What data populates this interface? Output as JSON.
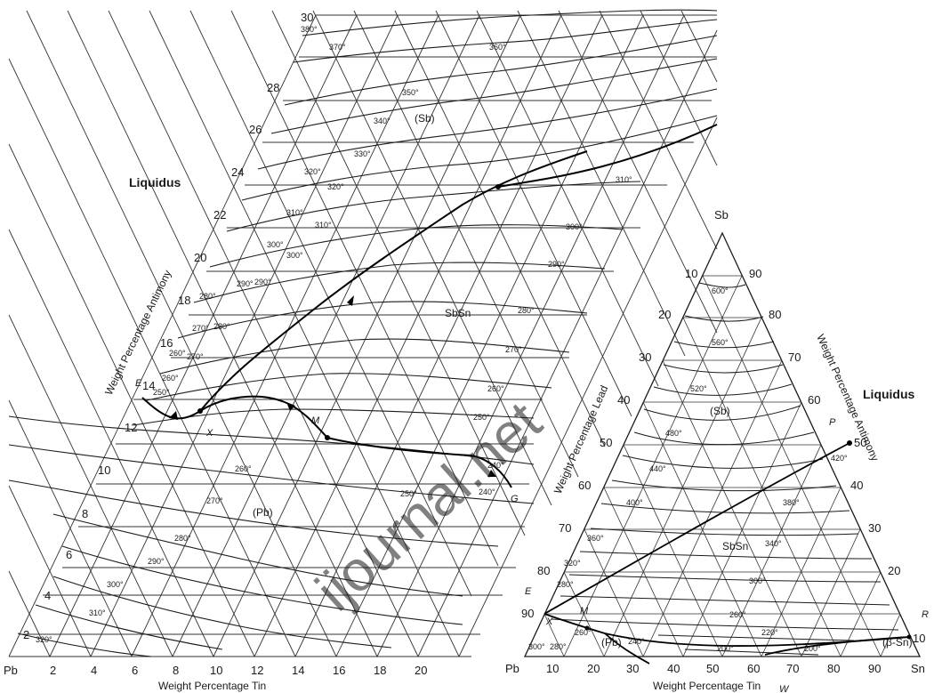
{
  "left_diagram": {
    "title": "Liquidus",
    "y_axis_label": "Weight Percentage Antimony",
    "x_axis_label": "Weight Percentage Tin",
    "corner_label": "Pb",
    "y_ticks": [
      "2",
      "4",
      "6",
      "8",
      "10",
      "12",
      "14",
      "16",
      "18",
      "20",
      "22",
      "24",
      "26",
      "28",
      "30"
    ],
    "x_ticks": [
      "2",
      "4",
      "6",
      "8",
      "10",
      "12",
      "14",
      "16",
      "18",
      "20"
    ],
    "phase_labels": [
      "(Sb)",
      "SbSn",
      "(Pb)"
    ],
    "point_labels": [
      "E",
      "X",
      "M",
      "G"
    ],
    "isotherms": [
      "380°",
      "370°",
      "360°",
      "350°",
      "340°",
      "330°",
      "320°",
      "310°",
      "300°",
      "290°",
      "280°",
      "270°",
      "260°",
      "250°",
      "240°",
      "310°",
      "300°",
      "290°",
      "280°",
      "270°",
      "260°",
      "250°",
      "240°",
      "260°",
      "270°",
      "280°",
      "290°",
      "300°",
      "310°",
      "320°",
      "320°",
      "310°",
      "300°",
      "290°",
      "280°",
      "270°",
      "260°",
      "250°"
    ]
  },
  "right_diagram": {
    "title": "Liquidus",
    "top_vertex": "Sb",
    "left_vertex": "Pb",
    "right_vertex": "Sn",
    "left_side_label": "Weight Percentage Lead",
    "right_side_label": "Weight Percentage Antimony",
    "bottom_label": "Weight Percentage Tin",
    "lead_ticks": [
      "10",
      "20",
      "30",
      "40",
      "50",
      "60",
      "70",
      "80",
      "90"
    ],
    "antimony_ticks": [
      "90",
      "80",
      "70",
      "60",
      "50",
      "40",
      "30",
      "20",
      "10"
    ],
    "tin_ticks": [
      "10",
      "20",
      "30",
      "40",
      "50",
      "60",
      "70",
      "80",
      "90"
    ],
    "phase_labels": [
      "(Sb)",
      "SbSn",
      "(Pb)",
      "(β-Sn)"
    ],
    "point_labels": [
      "P",
      "E",
      "X",
      "M",
      "W",
      "R"
    ],
    "isotherms": [
      "600°",
      "560°",
      "520°",
      "480°",
      "440°",
      "420°",
      "400°",
      "380°",
      "360°",
      "340°",
      "320°",
      "300°",
      "280°",
      "260°",
      "260°",
      "240°",
      "220°",
      "200°",
      "200°",
      "280°",
      "300°"
    ]
  },
  "watermark": "ijournal.net"
}
